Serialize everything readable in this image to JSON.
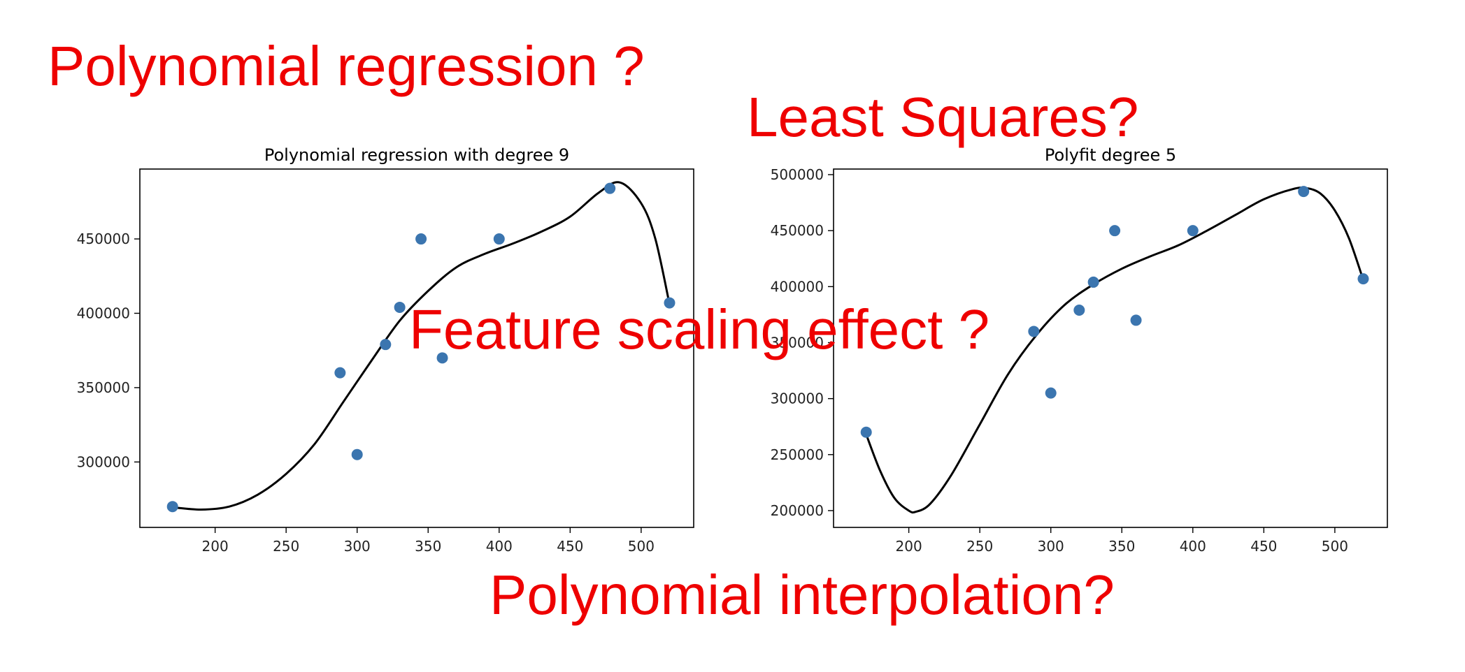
{
  "overlay_texts": [
    "Polynomial regression ?",
    "Least Squares?",
    "Feature scaling effect ?",
    "Polynomial interpolation?"
  ],
  "colors": {
    "overlay": "#ee0000",
    "points": "#3b75af",
    "curve": "#000000"
  },
  "chart_data": [
    {
      "type": "scatter",
      "title": "Polynomial regression with degree 9",
      "xlabel": "",
      "ylabel": "",
      "xlim": [
        147,
        537
      ],
      "ylim": [
        256000,
        497000
      ],
      "xticks": [
        200,
        250,
        300,
        350,
        400,
        450,
        500
      ],
      "xtick_labels": [
        "200",
        "250",
        "300",
        "350",
        "400",
        "450",
        "500"
      ],
      "yticks": [
        300000,
        350000,
        400000,
        450000
      ],
      "ytick_labels": [
        "300000",
        "350000",
        "400000",
        "450000"
      ],
      "grid": false,
      "points": {
        "x": [
          170,
          288,
          300,
          320,
          330,
          345,
          360,
          400,
          478,
          520
        ],
        "y": [
          270000,
          360000,
          305000,
          379000,
          404000,
          450000,
          370000,
          450000,
          484000,
          407000
        ]
      },
      "fit_curve": {
        "x": [
          170,
          190,
          210,
          230,
          250,
          270,
          290,
          310,
          330,
          350,
          370,
          390,
          410,
          430,
          450,
          470,
          485,
          500,
          510,
          520
        ],
        "y": [
          269500,
          268000,
          270000,
          278000,
          292000,
          312000,
          340000,
          368000,
          395000,
          415000,
          431000,
          440000,
          447000,
          455000,
          465000,
          481000,
          488000,
          474000,
          450000,
          406000
        ]
      }
    },
    {
      "type": "scatter",
      "title": "Polyfit degree 5",
      "xlabel": "",
      "ylabel": "",
      "xlim": [
        147,
        537
      ],
      "ylim": [
        185000,
        505000
      ],
      "xticks": [
        200,
        250,
        300,
        350,
        400,
        450,
        500
      ],
      "xtick_labels": [
        "200",
        "250",
        "300",
        "350",
        "400",
        "450",
        "500"
      ],
      "yticks": [
        200000,
        250000,
        300000,
        350000,
        400000,
        450000,
        500000
      ],
      "ytick_labels": [
        "200000",
        "250000",
        "300000",
        "350000",
        "400000",
        "450000",
        "500000"
      ],
      "grid": false,
      "points": {
        "x": [
          170,
          288,
          300,
          320,
          330,
          345,
          360,
          400,
          478,
          520
        ],
        "y": [
          270000,
          360000,
          305000,
          379000,
          404000,
          450000,
          370000,
          450000,
          485000,
          407000
        ]
      },
      "fit_curve": {
        "x": [
          170,
          180,
          190,
          200,
          205,
          215,
          230,
          250,
          270,
          290,
          310,
          330,
          350,
          370,
          390,
          410,
          430,
          450,
          470,
          480,
          490,
          500,
          510,
          520
        ],
        "y": [
          268000,
          235000,
          211000,
          200000,
          199000,
          206000,
          232000,
          277000,
          322000,
          357000,
          384000,
          402000,
          416000,
          427000,
          437000,
          450000,
          464000,
          478000,
          487000,
          488000,
          483000,
          468000,
          443000,
          406000
        ]
      }
    }
  ]
}
